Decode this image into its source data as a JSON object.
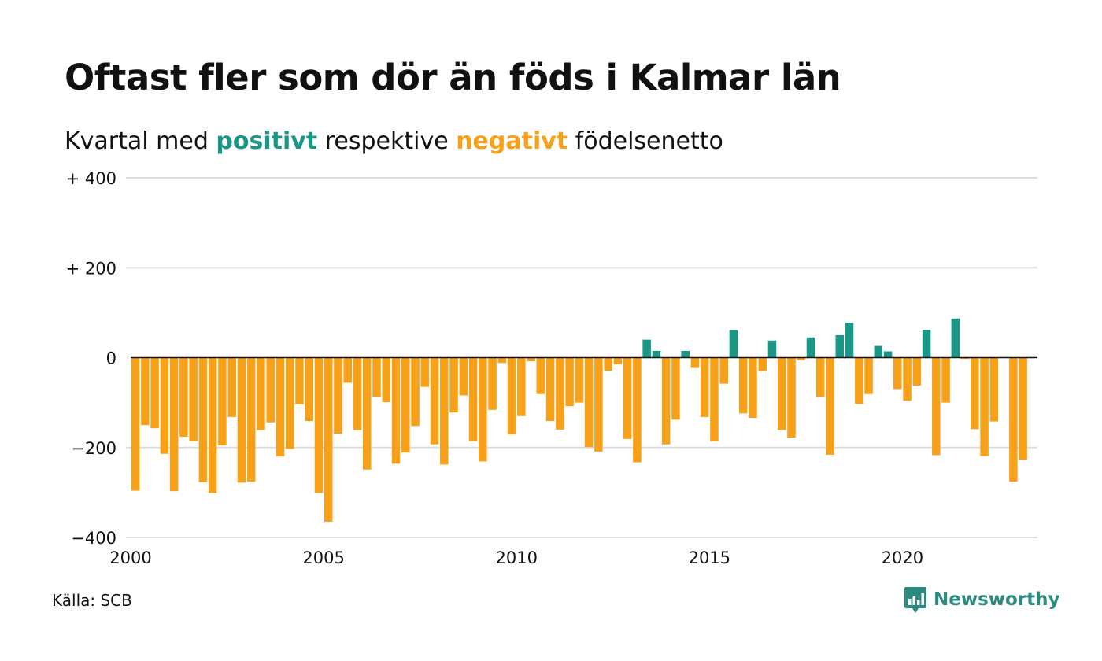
{
  "title": "Oftast fler som dör än föds i Kalmar län",
  "subtitle": {
    "prefix": "Kvartal med ",
    "positive_word": "positivt",
    "middle": " respektive ",
    "negative_word": "negativt",
    "suffix": " födelsenetto"
  },
  "source": "Källa: SCB",
  "logo_text": "Newsworthy",
  "colors": {
    "positive": "#1a9885",
    "negative": "#f7a11a",
    "grid": "#dddddd",
    "zero_line": "#111111",
    "text": "#111111",
    "logo": "#2d8a80"
  },
  "icons": {
    "logo": "newsworthy-bar-chart-icon"
  },
  "chart_data": {
    "type": "bar",
    "x_start": 2000,
    "x_step": 0.25,
    "xlim": [
      2000,
      2023.5
    ],
    "ylim": [
      -400,
      400
    ],
    "y_ticks": [
      {
        "value": 400,
        "label": "+ 400"
      },
      {
        "value": 200,
        "label": "+ 200"
      },
      {
        "value": 0,
        "label": "0"
      },
      {
        "value": -200,
        "label": "−200"
      },
      {
        "value": -400,
        "label": "−400"
      }
    ],
    "x_ticks": [
      {
        "value": 2000,
        "label": "2000"
      },
      {
        "value": 2005,
        "label": "2005"
      },
      {
        "value": 2010,
        "label": "2010"
      },
      {
        "value": 2015,
        "label": "2015"
      },
      {
        "value": 2020,
        "label": "2020"
      }
    ],
    "grid": true,
    "values": [
      -296,
      -150,
      -157,
      -214,
      -297,
      -176,
      -186,
      -277,
      -301,
      -195,
      -132,
      -278,
      -276,
      -161,
      -144,
      -220,
      -203,
      -104,
      -141,
      -301,
      -365,
      -169,
      -56,
      -161,
      -249,
      -87,
      -99,
      -236,
      -211,
      -152,
      -65,
      -193,
      -238,
      -122,
      -84,
      -186,
      -231,
      -116,
      -12,
      -171,
      -130,
      -8,
      -81,
      -141,
      -160,
      -108,
      -100,
      -199,
      -209,
      -29,
      -15,
      -181,
      -233,
      40,
      15,
      -193,
      -138,
      15,
      -23,
      -132,
      -186,
      -58,
      61,
      -124,
      -134,
      -30,
      38,
      -161,
      -178,
      -6,
      45,
      -87,
      -216,
      50,
      78,
      -103,
      -81,
      26,
      14,
      -70,
      -96,
      -62,
      62,
      -217,
      -100,
      87,
      -3,
      -159,
      -219,
      -142,
      0,
      -276,
      -227
    ]
  }
}
